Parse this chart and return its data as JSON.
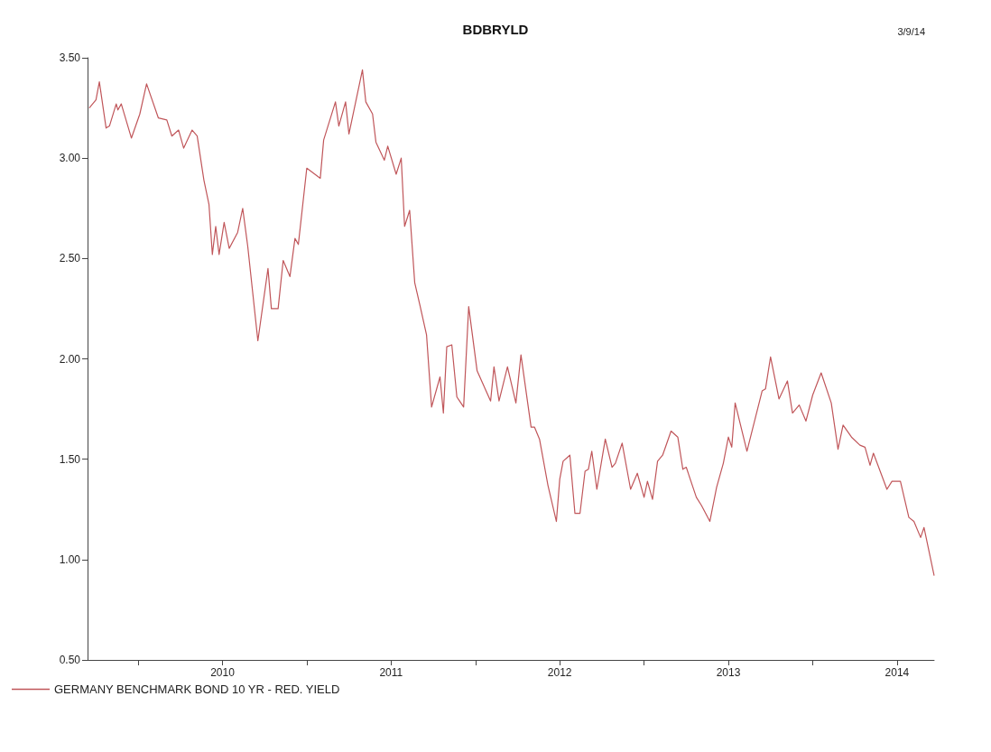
{
  "chart_data": {
    "type": "line",
    "title": "BDBRYLD",
    "subtitle": "3/9/14",
    "x": [
      2009.71,
      2009.75,
      2009.77,
      2009.81,
      2009.83,
      2009.87,
      2009.88,
      2009.9,
      2009.96,
      2010.01,
      2010.05,
      2010.12,
      2010.17,
      2010.2,
      2010.24,
      2010.27,
      2010.32,
      2010.35,
      2010.39,
      2010.42,
      2010.44,
      2010.46,
      2010.48,
      2010.51,
      2010.54,
      2010.59,
      2010.62,
      2010.65,
      2010.71,
      2010.77,
      2010.79,
      2010.83,
      2010.86,
      2010.9,
      2010.93,
      2010.95,
      2011.0,
      2011.08,
      2011.1,
      2011.17,
      2011.19,
      2011.23,
      2011.25,
      2011.33,
      2011.35,
      2011.39,
      2011.41,
      2011.46,
      2011.48,
      2011.53,
      2011.56,
      2011.58,
      2011.61,
      2011.64,
      2011.67,
      2011.71,
      2011.74,
      2011.79,
      2011.81,
      2011.83,
      2011.86,
      2011.89,
      2011.93,
      2011.96,
      2012.01,
      2012.09,
      2012.11,
      2012.14,
      2012.19,
      2012.24,
      2012.27,
      2012.33,
      2012.35,
      2012.38,
      2012.43,
      2012.48,
      2012.5,
      2012.52,
      2012.56,
      2012.59,
      2012.62,
      2012.65,
      2012.67,
      2012.69,
      2012.72,
      2012.77,
      2012.81,
      2012.83,
      2012.87,
      2012.92,
      2012.96,
      2013.0,
      2013.02,
      2013.05,
      2013.08,
      2013.11,
      2013.16,
      2013.2,
      2013.23,
      2013.25,
      2013.31,
      2013.34,
      2013.39,
      2013.43,
      2013.47,
      2013.5,
      2013.52,
      2013.54,
      2013.61,
      2013.64,
      2013.7,
      2013.72,
      2013.75,
      2013.8,
      2013.85,
      2013.88,
      2013.92,
      2013.96,
      2014.0,
      2014.05,
      2014.11,
      2014.15,
      2014.18,
      2014.23,
      2014.28,
      2014.31,
      2014.34,
      2014.36,
      2014.44,
      2014.47,
      2014.52,
      2014.57,
      2014.6,
      2014.64,
      2014.66,
      2014.72
    ],
    "series": [
      {
        "name": "GERMANY BENCHMARK BOND 10 YR - RED. YIELD",
        "color": "#c0565a",
        "values": [
          3.25,
          3.29,
          3.38,
          3.15,
          3.16,
          3.27,
          3.24,
          3.27,
          3.1,
          3.22,
          3.37,
          3.2,
          3.19,
          3.11,
          3.14,
          3.05,
          3.14,
          3.11,
          2.89,
          2.77,
          2.52,
          2.66,
          2.52,
          2.68,
          2.55,
          2.63,
          2.75,
          2.56,
          2.09,
          2.45,
          2.25,
          2.25,
          2.49,
          2.41,
          2.6,
          2.57,
          2.95,
          2.9,
          3.09,
          3.28,
          3.16,
          3.28,
          3.12,
          3.44,
          3.28,
          3.22,
          3.08,
          2.99,
          3.06,
          2.92,
          3.0,
          2.66,
          2.74,
          2.38,
          2.27,
          2.12,
          1.76,
          1.91,
          1.73,
          2.06,
          2.07,
          1.81,
          1.76,
          2.26,
          1.94,
          1.79,
          1.96,
          1.79,
          1.96,
          1.78,
          2.02,
          1.66,
          1.66,
          1.6,
          1.37,
          1.19,
          1.4,
          1.49,
          1.52,
          1.23,
          1.23,
          1.44,
          1.45,
          1.54,
          1.35,
          1.6,
          1.46,
          1.48,
          1.58,
          1.35,
          1.43,
          1.31,
          1.39,
          1.3,
          1.49,
          1.52,
          1.64,
          1.61,
          1.45,
          1.46,
          1.31,
          1.27,
          1.19,
          1.36,
          1.48,
          1.61,
          1.56,
          1.78,
          1.54,
          1.64,
          1.84,
          1.85,
          2.01,
          1.8,
          1.89,
          1.73,
          1.77,
          1.69,
          1.82,
          1.93,
          1.78,
          1.55,
          1.67,
          1.61,
          1.57,
          1.56,
          1.47,
          1.53,
          1.35,
          1.39,
          1.39,
          1.21,
          1.19,
          1.11,
          1.16,
          0.92
        ]
      }
    ],
    "xlim": [
      2009.7,
      2014.72
    ],
    "xticks": [
      {
        "value": 2010,
        "label": null
      },
      {
        "value": 2010.5,
        "label": "2010"
      },
      {
        "value": 2011,
        "label": null
      },
      {
        "value": 2011.5,
        "label": "2011"
      },
      {
        "value": 2012,
        "label": null
      },
      {
        "value": 2012.5,
        "label": "2012"
      },
      {
        "value": 2013,
        "label": null
      },
      {
        "value": 2013.5,
        "label": "2013"
      },
      {
        "value": 2014,
        "label": null
      },
      {
        "value": 2014.5,
        "label": "2014"
      }
    ],
    "ylim": [
      0.5,
      3.5
    ],
    "yticks": [
      {
        "value": 0.5,
        "label": "0.50"
      },
      {
        "value": 1,
        "label": "1.00"
      },
      {
        "value": 1.5,
        "label": "1.50"
      },
      {
        "value": 2,
        "label": "2.00"
      },
      {
        "value": 2.5,
        "label": "2.50"
      },
      {
        "value": 3,
        "label": "3.00"
      },
      {
        "value": 3.5,
        "label": "3.50"
      }
    ],
    "legend": "bottom left",
    "marker": "none",
    "line_style": "solid"
  }
}
